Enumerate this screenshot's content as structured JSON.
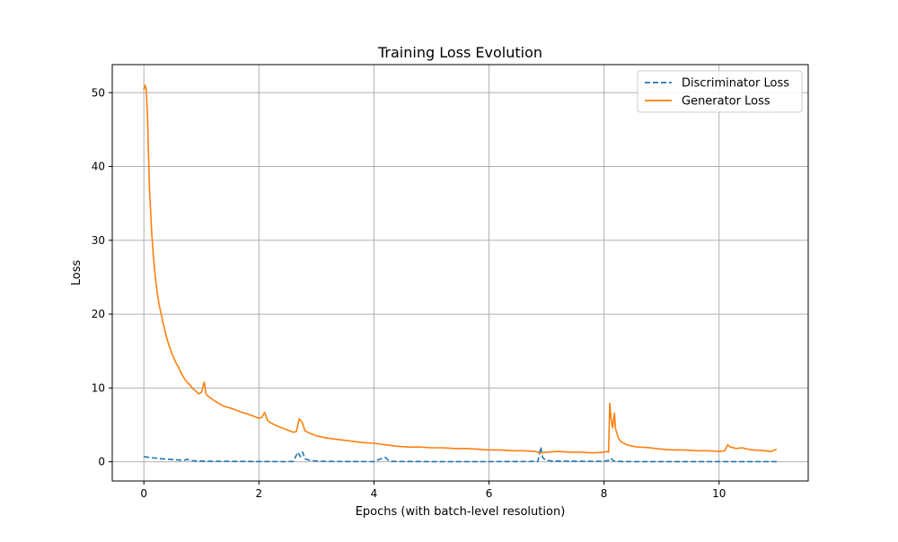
{
  "chart_data": {
    "type": "line",
    "title": "Training Loss Evolution",
    "xlabel": "Epochs (with batch-level resolution)",
    "ylabel": "Loss",
    "xlim": [
      -0.55,
      11.55
    ],
    "ylim": [
      -2.6,
      53.8
    ],
    "xticks": [
      0,
      2,
      4,
      6,
      8,
      10
    ],
    "yticks": [
      0,
      10,
      20,
      30,
      40,
      50
    ],
    "grid": true,
    "legend_position": "top-right",
    "series": [
      {
        "name": "Discriminator Loss",
        "color": "#1f77b4",
        "style": "dashed",
        "x": [
          0.0,
          0.1,
          0.2,
          0.3,
          0.4,
          0.5,
          0.6,
          0.7,
          0.75,
          0.8,
          0.9,
          1.0,
          1.2,
          1.5,
          2.0,
          2.5,
          2.6,
          2.65,
          2.68,
          2.72,
          2.76,
          2.8,
          2.9,
          3.2,
          4.0,
          4.15,
          4.2,
          4.25,
          4.3,
          5.0,
          6.0,
          6.85,
          6.9,
          6.93,
          6.97,
          7.0,
          7.1,
          8.0,
          8.08,
          8.12,
          8.16,
          8.2,
          8.5,
          9.0,
          10.0,
          11.0
        ],
        "y": [
          0.7,
          0.6,
          0.5,
          0.42,
          0.35,
          0.3,
          0.25,
          0.2,
          0.35,
          0.15,
          0.12,
          0.1,
          0.08,
          0.06,
          0.04,
          0.03,
          0.05,
          0.9,
          1.3,
          0.7,
          1.3,
          0.4,
          0.15,
          0.05,
          0.03,
          0.5,
          0.6,
          0.2,
          0.05,
          0.03,
          0.03,
          0.05,
          2.0,
          0.6,
          0.3,
          0.2,
          0.1,
          0.06,
          0.2,
          0.5,
          0.15,
          0.05,
          0.03,
          0.03,
          0.02,
          0.02
        ]
      },
      {
        "name": "Generator Loss",
        "color": "#ff7f0e",
        "style": "solid",
        "x": [
          0.0,
          0.02,
          0.04,
          0.06,
          0.08,
          0.1,
          0.12,
          0.14,
          0.17,
          0.2,
          0.23,
          0.26,
          0.3,
          0.35,
          0.4,
          0.45,
          0.5,
          0.55,
          0.6,
          0.65,
          0.7,
          0.75,
          0.8,
          0.85,
          0.9,
          0.95,
          1.0,
          1.05,
          1.08,
          1.1,
          1.15,
          1.2,
          1.3,
          1.4,
          1.5,
          1.6,
          1.7,
          1.8,
          1.9,
          2.0,
          2.05,
          2.1,
          2.15,
          2.2,
          2.3,
          2.4,
          2.5,
          2.6,
          2.65,
          2.7,
          2.75,
          2.8,
          2.9,
          3.0,
          3.2,
          3.4,
          3.6,
          3.8,
          4.0,
          4.2,
          4.4,
          4.6,
          4.8,
          5.0,
          5.2,
          5.4,
          5.6,
          5.8,
          6.0,
          6.2,
          6.4,
          6.6,
          6.8,
          6.9,
          7.0,
          7.2,
          7.4,
          7.6,
          7.8,
          8.0,
          8.05,
          8.08,
          8.1,
          8.12,
          8.15,
          8.18,
          8.2,
          8.25,
          8.3,
          8.4,
          8.5,
          8.6,
          8.8,
          9.0,
          9.2,
          9.4,
          9.6,
          9.8,
          10.0,
          10.1,
          10.15,
          10.2,
          10.3,
          10.4,
          10.5,
          10.6,
          10.8,
          10.9,
          11.0
        ],
        "y": [
          50.4,
          51.0,
          50.5,
          47.5,
          41.5,
          36.5,
          33.5,
          30.5,
          27.5,
          25.0,
          23.0,
          21.5,
          20.0,
          18.3,
          16.7,
          15.5,
          14.4,
          13.5,
          12.8,
          12.0,
          11.3,
          10.8,
          10.4,
          9.9,
          9.6,
          9.2,
          9.4,
          10.8,
          9.2,
          9.0,
          8.7,
          8.4,
          7.9,
          7.5,
          7.3,
          7.0,
          6.7,
          6.5,
          6.2,
          5.9,
          6.0,
          6.7,
          5.6,
          5.3,
          4.9,
          4.6,
          4.3,
          4.0,
          4.1,
          5.8,
          5.4,
          4.2,
          3.8,
          3.5,
          3.2,
          3.0,
          2.8,
          2.6,
          2.5,
          2.3,
          2.1,
          2.0,
          2.0,
          1.9,
          1.9,
          1.8,
          1.8,
          1.7,
          1.6,
          1.6,
          1.5,
          1.5,
          1.4,
          1.2,
          1.3,
          1.4,
          1.3,
          1.3,
          1.2,
          1.3,
          1.4,
          1.3,
          7.9,
          6.0,
          4.6,
          6.6,
          4.5,
          3.2,
          2.7,
          2.3,
          2.1,
          2.0,
          1.9,
          1.7,
          1.6,
          1.6,
          1.5,
          1.5,
          1.4,
          1.5,
          2.3,
          2.0,
          1.8,
          1.9,
          1.7,
          1.6,
          1.5,
          1.4,
          1.7
        ]
      }
    ]
  }
}
